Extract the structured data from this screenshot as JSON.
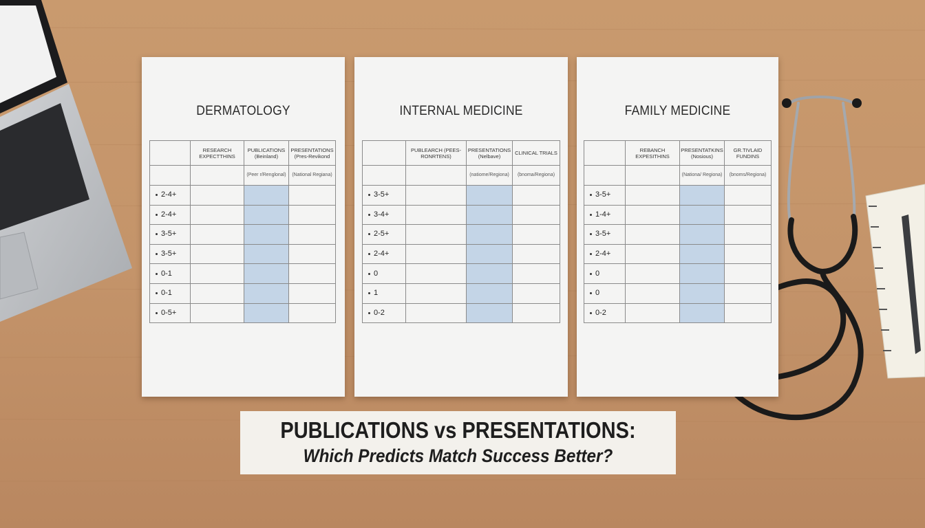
{
  "sheets": [
    {
      "title": "DERMATOLOGY",
      "headers": [
        "RESEARCH EXPECTTHINS",
        "PUBLICATIONS (Beinland)",
        "PRESENTATIONS (Pres-Revikond"
      ],
      "subheaders": [
        "(Peer r/Renglonal)",
        "(National Regiana)"
      ],
      "rows": [
        "2-4+",
        "2-4+",
        "3-5+",
        "3-5+",
        "0-1",
        "0-1",
        "0-5+"
      ]
    },
    {
      "title": "INTERNAL MEDICINE",
      "headers": [
        "PUBLEARCH (PEES-RONRTENS)",
        "PRESENTATIONS (Nelbave)",
        "CLINICAL TRIALS"
      ],
      "subheaders": [
        "(natiome/Regiona)",
        "(bnoma/Regiona)"
      ],
      "rows": [
        "3-5+",
        "3-4+",
        "2-5+",
        "2-4+",
        "0",
        "1",
        "0-2"
      ]
    },
    {
      "title": "FAMILY MEDICINE",
      "headers": [
        "REBANCH EXPESITHINS",
        "PRESENTATKINS (Nosious)",
        "GR.TIVLAID FUNDINS"
      ],
      "subheaders": [
        "(Nationa/ Regiona)",
        "(bnoms/Regiona)"
      ],
      "rows": [
        "3-5+",
        "1-4+",
        "3-5+",
        "2-4+",
        "0",
        "0",
        "0-2"
      ]
    }
  ],
  "caption": {
    "headline": "PUBLICATIONS vs PRESENTATIONS:",
    "question": "Which Predicts Match Success Better?"
  }
}
